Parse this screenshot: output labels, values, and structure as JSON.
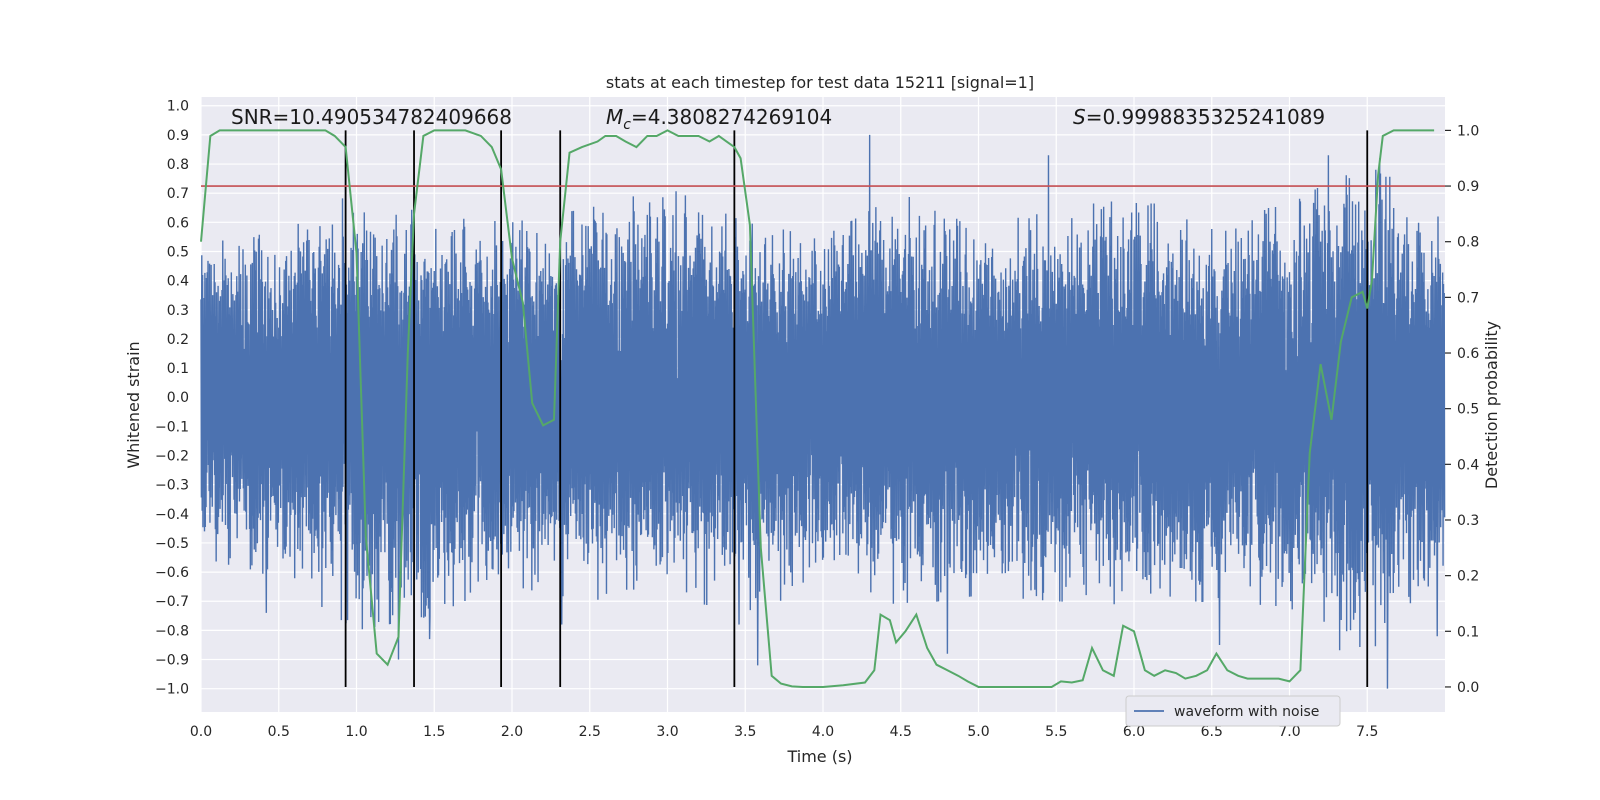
{
  "chart_data": {
    "type": "line",
    "title": "stats at each timestep for test data 15211 [signal=1]",
    "xlabel": "Time (s)",
    "ylabel_left": "Whitened strain",
    "ylabel_right": "Detection probability",
    "xlim": [
      0,
      8
    ],
    "ylim_left": [
      -1.08,
      1.03
    ],
    "ylim_right": [
      -0.045,
      1.06
    ],
    "x_ticks": [
      "0.0",
      "0.5",
      "1.0",
      "1.5",
      "2.0",
      "2.5",
      "3.0",
      "3.5",
      "4.0",
      "4.5",
      "5.0",
      "5.5",
      "6.0",
      "6.5",
      "7.0",
      "7.5"
    ],
    "y_left_ticks": [
      "1.0",
      "0.9",
      "0.8",
      "0.7",
      "0.6",
      "0.5",
      "0.4",
      "0.3",
      "0.2",
      "0.1",
      "0.0",
      "-0.1",
      "-0.2",
      "-0.3",
      "-0.4",
      "-0.5",
      "-0.6",
      "-0.7",
      "-0.8",
      "-0.9",
      "-1.0"
    ],
    "y_right_ticks": [
      "1.0",
      "0.9",
      "0.8",
      "0.7",
      "0.6",
      "0.5",
      "0.4",
      "0.3",
      "0.2",
      "0.1",
      "0.0"
    ],
    "annotations": {
      "snr": "SNR=10.490534782409668",
      "mc_symbol": "M",
      "mc_sub": "c",
      "mc_value": "=4.3808274269104",
      "s_symbol": "S",
      "s_value": "=0.9998835325241089"
    },
    "legend": "waveform with noise",
    "threshold": 0.9,
    "vlines": [
      0.93,
      1.37,
      1.93,
      2.31,
      3.43,
      7.5
    ],
    "series": [
      {
        "name": "waveform with noise",
        "color": "#4c72b0",
        "sample_rate": 400,
        "envelope_x": [
          0.0,
          0.5,
          1.0,
          1.5,
          2.0,
          2.5,
          3.0,
          3.5,
          4.0,
          4.5,
          5.0,
          5.5,
          6.0,
          6.5,
          7.0,
          7.5,
          8.0
        ],
        "envelope_hi": [
          0.55,
          0.6,
          0.7,
          0.62,
          0.6,
          0.65,
          0.72,
          0.6,
          0.55,
          0.7,
          0.58,
          0.65,
          0.68,
          0.62,
          0.66,
          0.82,
          0.6
        ],
        "envelope_lo": [
          -0.55,
          -0.62,
          -0.8,
          -0.75,
          -0.65,
          -0.7,
          -0.65,
          -0.78,
          -0.6,
          -0.72,
          -0.68,
          -0.7,
          -0.72,
          -0.7,
          -0.72,
          -0.95,
          -0.65
        ],
        "peaks": [
          [
            0.42,
            -0.74
          ],
          [
            0.93,
            0.9
          ],
          [
            1.27,
            -0.9
          ],
          [
            1.47,
            -0.83
          ],
          [
            2.32,
            -0.78
          ],
          [
            3.46,
            -0.78
          ],
          [
            3.58,
            -0.92
          ],
          [
            4.3,
            0.9
          ],
          [
            4.8,
            -0.88
          ],
          [
            5.45,
            0.83
          ],
          [
            6.55,
            -0.85
          ],
          [
            7.25,
            0.83
          ],
          [
            7.58,
            0.82
          ],
          [
            7.63,
            -1.0
          ],
          [
            7.95,
            -0.82
          ]
        ]
      },
      {
        "name": "detection probability",
        "color": "#55a868",
        "axis": "right",
        "x": [
          0.0,
          0.06,
          0.12,
          0.2,
          0.4,
          0.6,
          0.8,
          0.86,
          0.93,
          1.0,
          1.06,
          1.13,
          1.2,
          1.27,
          1.33,
          1.37,
          1.43,
          1.5,
          1.6,
          1.7,
          1.8,
          1.87,
          1.93,
          2.0,
          2.07,
          2.13,
          2.2,
          2.27,
          2.31,
          2.37,
          2.45,
          2.55,
          2.6,
          2.67,
          2.73,
          2.8,
          2.87,
          2.93,
          3.0,
          3.07,
          3.13,
          3.2,
          3.27,
          3.33,
          3.38,
          3.43,
          3.47,
          3.53,
          3.6,
          3.67,
          3.73,
          3.8,
          3.87,
          4.0,
          4.13,
          4.27,
          4.33,
          4.37,
          4.43,
          4.47,
          4.53,
          4.6,
          4.67,
          4.73,
          4.8,
          4.87,
          4.93,
          5.0,
          5.13,
          5.2,
          5.33,
          5.47,
          5.53,
          5.6,
          5.67,
          5.73,
          5.8,
          5.87,
          5.93,
          6.0,
          6.07,
          6.13,
          6.2,
          6.27,
          6.33,
          6.4,
          6.47,
          6.53,
          6.6,
          6.67,
          6.73,
          6.8,
          6.87,
          6.93,
          7.0,
          7.07,
          7.13,
          7.2,
          7.27,
          7.33,
          7.4,
          7.47,
          7.5,
          7.53,
          7.57,
          7.6,
          7.67,
          7.73,
          7.8,
          7.87,
          7.93
        ],
        "y": [
          0.8,
          0.99,
          1.0,
          1.0,
          1.0,
          1.0,
          1.0,
          0.99,
          0.97,
          0.78,
          0.27,
          0.06,
          0.04,
          0.09,
          0.6,
          0.85,
          0.99,
          1.0,
          1.0,
          1.0,
          0.99,
          0.97,
          0.93,
          0.77,
          0.69,
          0.51,
          0.47,
          0.48,
          0.8,
          0.96,
          0.97,
          0.98,
          0.99,
          0.99,
          0.98,
          0.97,
          0.99,
          0.99,
          1.0,
          0.99,
          0.99,
          0.99,
          0.98,
          0.99,
          0.98,
          0.97,
          0.95,
          0.83,
          0.25,
          0.02,
          0.006,
          0.001,
          0.0,
          0.0,
          0.003,
          0.008,
          0.03,
          0.13,
          0.12,
          0.08,
          0.1,
          0.13,
          0.07,
          0.04,
          0.03,
          0.02,
          0.01,
          0.0,
          0.0,
          0.0,
          0.0,
          0.0,
          0.01,
          0.008,
          0.012,
          0.07,
          0.03,
          0.02,
          0.11,
          0.1,
          0.03,
          0.02,
          0.03,
          0.025,
          0.015,
          0.02,
          0.03,
          0.06,
          0.03,
          0.02,
          0.015,
          0.015,
          0.015,
          0.015,
          0.01,
          0.03,
          0.42,
          0.58,
          0.48,
          0.62,
          0.7,
          0.71,
          0.68,
          0.73,
          0.92,
          0.99,
          1.0,
          1.0,
          1.0,
          1.0,
          1.0
        ]
      }
    ]
  }
}
